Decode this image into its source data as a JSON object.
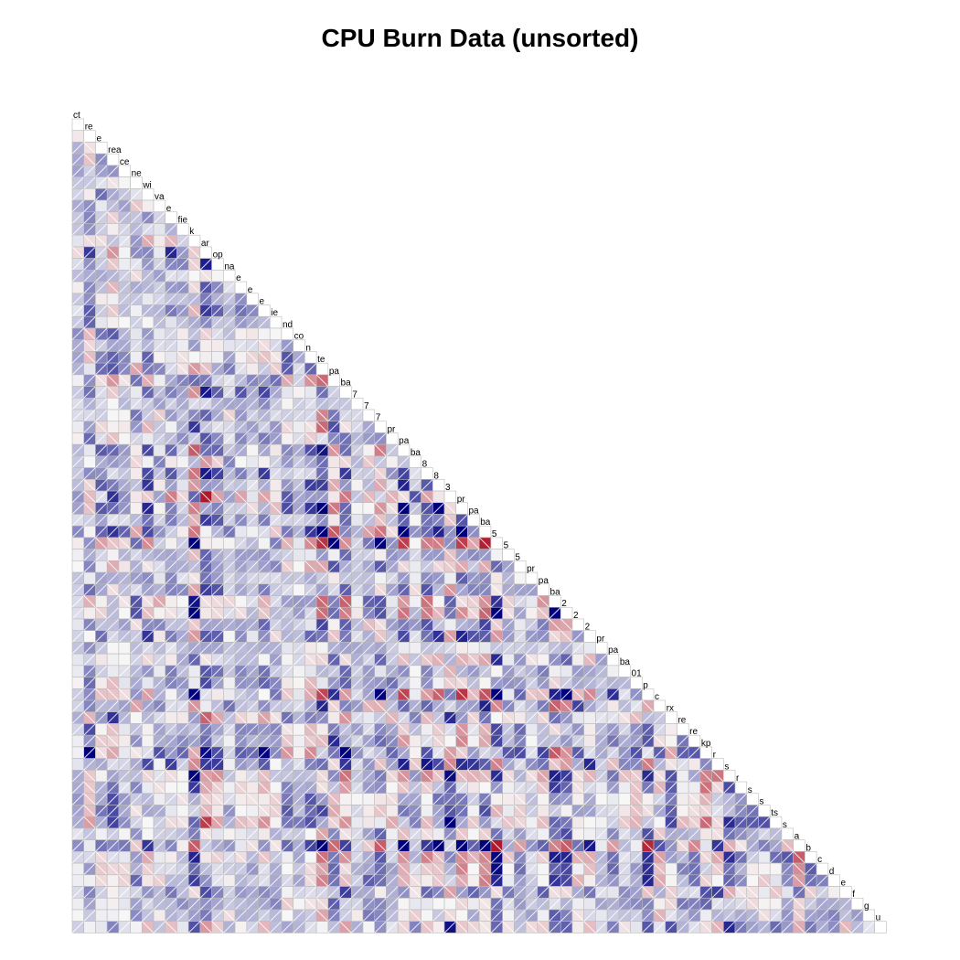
{
  "chart_data": {
    "type": "heatmap",
    "title": "CPU Burn Data (unsorted)",
    "layout": "lower-triangle",
    "panel": "shade",
    "variables": [
      "ct",
      "re",
      "e",
      "rea",
      "ce",
      "ne",
      "wi",
      "va",
      "e",
      "fie",
      "k",
      "ar",
      "op",
      "na",
      "e",
      "e",
      "e",
      "ie",
      "nd",
      "co",
      "n",
      "te",
      "pa",
      "ba",
      "7",
      "7",
      "7",
      "pr",
      "pa",
      "ba",
      "8",
      "8",
      "3",
      "pr",
      "pa",
      "ba",
      "5",
      "5",
      "5",
      "pr",
      "pa",
      "ba",
      "2",
      "2",
      "2",
      "pr",
      "pa",
      "ba",
      "01",
      "p",
      "c",
      "rx",
      "re",
      "re",
      "kp",
      "r",
      "s",
      "r",
      "s",
      "s",
      "ts",
      "s",
      "a",
      "b",
      "c",
      "d",
      "e",
      "f",
      "g",
      "u"
    ],
    "color_scale": {
      "negative": "#b2182b",
      "zero": "#f7f7f7",
      "positive": "#00007f"
    },
    "grid_color": "#bbbbbb",
    "seed": 73
  }
}
